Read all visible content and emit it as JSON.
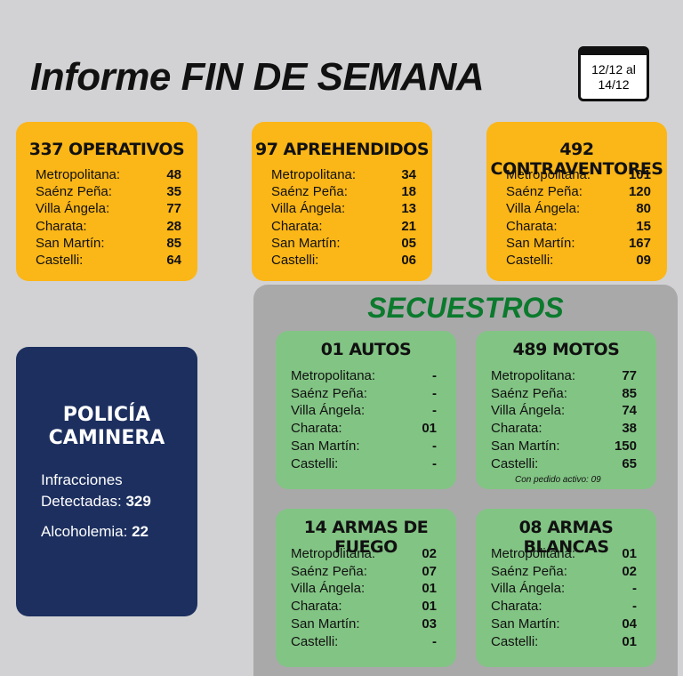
{
  "header": {
    "title": "Informe FIN DE SEMANA",
    "date": [
      "12/12 al",
      "14/12"
    ]
  },
  "top_cards": [
    {
      "title": "337 OPERATIVOS",
      "rows": [
        [
          "Metropolitana:",
          "48"
        ],
        [
          "Saénz Peña:",
          "35"
        ],
        [
          "Villa Ángela:",
          "77"
        ],
        [
          "Charata:",
          "28"
        ],
        [
          "San Martín:",
          "85"
        ],
        [
          "Castelli:",
          "64"
        ]
      ]
    },
    {
      "title": "97 APREHENDIDOS",
      "rows": [
        [
          "Metropolitana:",
          "34"
        ],
        [
          "Saénz Peña:",
          "18"
        ],
        [
          "Villa Ángela:",
          "13"
        ],
        [
          "Charata:",
          "21"
        ],
        [
          "San Martín:",
          "05"
        ],
        [
          "Castelli:",
          "06"
        ]
      ]
    },
    {
      "title": "492 CONTRAVENTORES",
      "rows": [
        [
          "Metropolitana:",
          "101"
        ],
        [
          "Saénz Peña:",
          "120"
        ],
        [
          "Villa Ángela:",
          "80"
        ],
        [
          "Charata:",
          "15"
        ],
        [
          "San Martín:",
          "167"
        ],
        [
          "Castelli:",
          "09"
        ]
      ]
    }
  ],
  "caminera": {
    "title": [
      "POLICÍA",
      "CAMINERA"
    ],
    "infracciones_label": [
      "Infracciones",
      "Detectadas:"
    ],
    "infracciones_value": "329",
    "alcoholemia_label": "Alcoholemia:",
    "alcoholemia_value": "22"
  },
  "secuestros": {
    "title": "SECUESTROS",
    "cards": [
      {
        "title": "01 AUTOS",
        "rows": [
          [
            "Metropolitana:",
            "-"
          ],
          [
            "Saénz Peña:",
            "-"
          ],
          [
            "Villa Ángela:",
            "-"
          ],
          [
            "Charata:",
            "01"
          ],
          [
            "San Martín:",
            "-"
          ],
          [
            "Castelli:",
            "-"
          ]
        ]
      },
      {
        "title": "489 MOTOS",
        "rows": [
          [
            "Metropolitana:",
            "77"
          ],
          [
            "Saénz Peña:",
            "85"
          ],
          [
            "Villa Ángela:",
            "74"
          ],
          [
            "Charata:",
            "38"
          ],
          [
            "San Martín:",
            "150"
          ],
          [
            "Castelli:",
            "65"
          ]
        ],
        "note": "Con pedido activo: 09"
      },
      {
        "title": "14 ARMAS DE FUEGO",
        "rows": [
          [
            "Metropolitana:",
            "02"
          ],
          [
            "Saénz Peña:",
            "07"
          ],
          [
            "Villa Ángela:",
            "01"
          ],
          [
            "Charata:",
            "01"
          ],
          [
            "San Martín:",
            "03"
          ],
          [
            "Castelli:",
            "-"
          ]
        ]
      },
      {
        "title": "08 ARMAS BLANCAS",
        "rows": [
          [
            "Metropolitana:",
            "01"
          ],
          [
            "Saénz Peña:",
            "02"
          ],
          [
            "Villa Ángela:",
            "-"
          ],
          [
            "Charata:",
            "-"
          ],
          [
            "San Martín:",
            "04"
          ],
          [
            "Castelli:",
            "01"
          ]
        ]
      }
    ]
  }
}
